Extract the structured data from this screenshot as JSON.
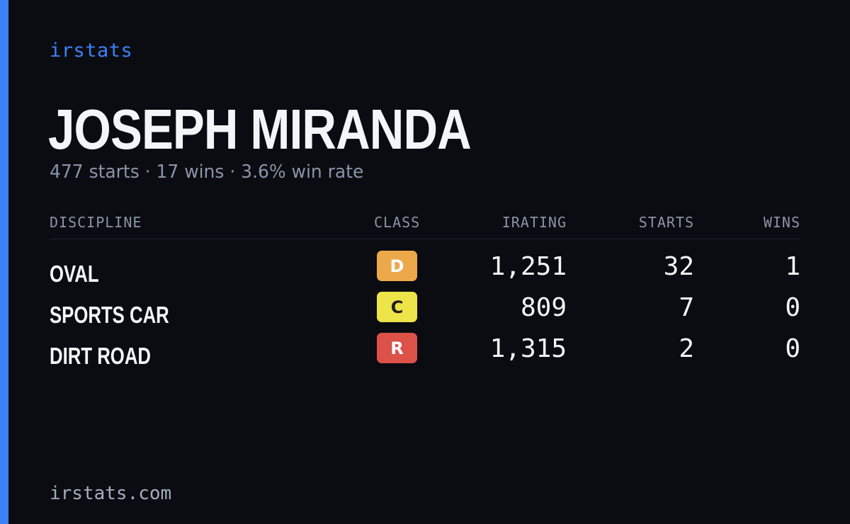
{
  "brand": "irstats",
  "player": {
    "name": "JOSEPH MIRANDA",
    "summary": "477 starts · 17 wins · 3.6% win rate"
  },
  "table": {
    "headers": {
      "discipline": "DISCIPLINE",
      "class": "CLASS",
      "irating": "IRATING",
      "starts": "STARTS",
      "wins": "WINS"
    },
    "rows": [
      {
        "discipline": "OVAL",
        "class": "D",
        "class_color": "#eda84a",
        "class_text_color": "#ffffff",
        "irating": "1,251",
        "starts": "32",
        "wins": "1"
      },
      {
        "discipline": "SPORTS CAR",
        "class": "C",
        "class_color": "#ece448",
        "class_text_color": "#1d1d1d",
        "irating": "809",
        "starts": "7",
        "wins": "0"
      },
      {
        "discipline": "DIRT ROAD",
        "class": "R",
        "class_color": "#dc5148",
        "class_text_color": "#ffffff",
        "irating": "1,315",
        "starts": "2",
        "wins": "0"
      }
    ]
  },
  "footer": {
    "domain": "irstats.com"
  },
  "colors": {
    "accent": "#3b82f6",
    "background": "#0a0c12",
    "muted_text": "#8a93a6"
  }
}
